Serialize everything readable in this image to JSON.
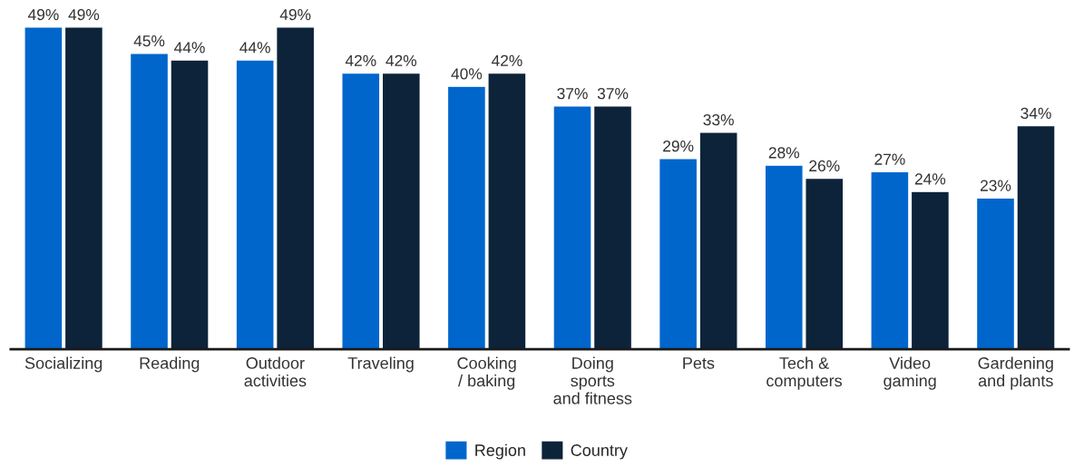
{
  "chart_data": {
    "type": "bar",
    "categories": [
      "Socializing",
      "Reading",
      "Outdoor\nactivities",
      "Traveling",
      "Cooking\n/ baking",
      "Doing\nsports\nand fitness",
      "Pets",
      "Tech &\ncomputers",
      "Video\ngaming",
      "Gardening\nand plants"
    ],
    "series": [
      {
        "name": "Region",
        "color": "#0066cc",
        "values": [
          49,
          45,
          44,
          42,
          40,
          37,
          29,
          28,
          27,
          23
        ],
        "value_labels": [
          "49%",
          "45%",
          "44%",
          "42%",
          "40%",
          "37%",
          "29%",
          "28%",
          "27%",
          "23%"
        ]
      },
      {
        "name": "Country",
        "color": "#0d233a",
        "values": [
          49,
          44,
          49,
          42,
          42,
          37,
          33,
          26,
          24,
          34
        ],
        "value_labels": [
          "49%",
          "44%",
          "49%",
          "42%",
          "42%",
          "37%",
          "33%",
          "26%",
          "24%",
          "34%"
        ]
      }
    ],
    "grid": false,
    "legend": "bottom"
  }
}
